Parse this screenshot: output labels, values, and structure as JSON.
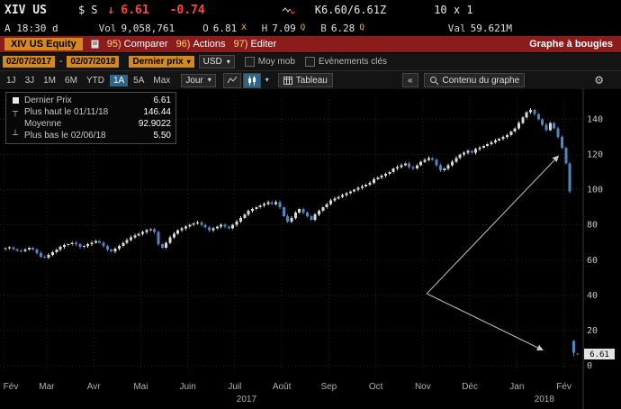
{
  "top_bar": {
    "ticker": "XIV US",
    "currency_flag": "$",
    "session_flag": "S",
    "tick_arrow": "↓",
    "last_price": "6.61",
    "net_change": "-0.74",
    "bid_ask": "K6.60/6.61Z",
    "lot_size": "10 x 1",
    "as_of": "A 18:30 d",
    "volume_label": "Vol",
    "volume": "9,058,761",
    "open_label": "O",
    "open": "6.81",
    "open_exch": "X",
    "high_label": "H",
    "high": "7.09",
    "high_exch": "Q",
    "low_label": "B",
    "low": "6.28",
    "low_exch": "Q",
    "value_label": "Val",
    "value": "59.621M"
  },
  "menu_bar": {
    "security": "XIV US Equity",
    "items": [
      {
        "num": "95)",
        "label": "Comparer"
      },
      {
        "num": "96)",
        "label": "Actions"
      },
      {
        "num": "97)",
        "label": "Editer"
      }
    ],
    "panel_title": "Graphe à bougies"
  },
  "toolbar": {
    "date_from": "02/07/2017",
    "date_sep": "-",
    "date_to": "02/07/2018",
    "price_field": "Dernier prix",
    "currency": "USD",
    "mov_avg_label": "Moy mob",
    "key_events_label": "Evènements clés",
    "periods": [
      "1J",
      "3J",
      "1M",
      "6M",
      "YTD",
      "1A",
      "5A",
      "Max"
    ],
    "active_period": "1A",
    "interval": "Jour",
    "table_label": "Tableau",
    "collapse_label": "«",
    "chart_content_label": "Contenu du graphe"
  },
  "legend": {
    "rows": [
      {
        "label": "Dernier Prix",
        "value": "6.61"
      },
      {
        "label": "Plus haut le 01/11/18",
        "value": "146.44"
      },
      {
        "label": "Moyenne",
        "value": "92.9022"
      },
      {
        "label": "Plus bas le 02/06/18",
        "value": "5.50"
      }
    ]
  },
  "chart_data": {
    "type": "candlestick",
    "symbol": "XIV US Equity",
    "title": "Graphe à bougies",
    "currency": "USD",
    "date_range": "02/07/2017 - 02/07/2018",
    "interval": "Jour",
    "ylim": [
      0,
      150
    ],
    "y_ticks": [
      0,
      20,
      40,
      60,
      80,
      100,
      120,
      140
    ],
    "grid": "dotted",
    "legend_position": "top-left",
    "up_color": "#d9d9d9",
    "down_color": "#4e86c0",
    "last_price": 6.61,
    "last_price_label": "6.61",
    "high_point": {
      "date": "01/11/18",
      "value": 146.44
    },
    "low_point": {
      "date": "02/06/18",
      "value": 5.5
    },
    "mean": 92.9022,
    "x_months": [
      {
        "label": "Fév",
        "i": 0
      },
      {
        "label": "Mar",
        "i": 11
      },
      {
        "label": "Avr",
        "i": 23
      },
      {
        "label": "Mai",
        "i": 35
      },
      {
        "label": "Juin",
        "i": 47
      },
      {
        "label": "Juil",
        "i": 59
      },
      {
        "label": "Août",
        "i": 71
      },
      {
        "label": "Sep",
        "i": 83
      },
      {
        "label": "Oct",
        "i": 95
      },
      {
        "label": "Nov",
        "i": 107
      },
      {
        "label": "Déc",
        "i": 119
      },
      {
        "label": "Jan",
        "i": 131
      },
      {
        "label": "Fév",
        "i": 143
      }
    ],
    "x_years": [
      {
        "label": "2017",
        "i": 62
      },
      {
        "label": "2018",
        "i": 138
      }
    ],
    "annotation_color": "#c8c8c8",
    "annotation_arrows": [
      {
        "from": [
          108,
          41
        ],
        "to": [
          141.5,
          119
        ]
      },
      {
        "from": [
          108,
          41
        ],
        "to": [
          137.5,
          9
        ]
      }
    ],
    "candles": [
      [
        66.2,
        67.4,
        65.3,
        66.8
      ],
      [
        66.8,
        67.9,
        66.0,
        67.2
      ],
      [
        67.2,
        67.9,
        65.6,
        66.4
      ],
      [
        66.4,
        66.9,
        64.6,
        65.4
      ],
      [
        65.4,
        66.3,
        64.4,
        65.3
      ],
      [
        65.3,
        66.9,
        64.4,
        66.0
      ],
      [
        66.0,
        67.9,
        65.1,
        67.0
      ],
      [
        67.0,
        67.9,
        65.1,
        66.0
      ],
      [
        66.0,
        66.9,
        63.1,
        64.0
      ],
      [
        64.0,
        64.9,
        61.1,
        62.0
      ],
      [
        62.0,
        62.9,
        60.6,
        61.5
      ],
      [
        61.5,
        63.9,
        60.6,
        63.0
      ],
      [
        63.0,
        65.4,
        62.1,
        64.5
      ],
      [
        64.5,
        66.9,
        63.6,
        66.0
      ],
      [
        66.0,
        68.4,
        65.1,
        67.5
      ],
      [
        67.5,
        69.4,
        66.6,
        68.5
      ],
      [
        68.5,
        69.9,
        67.6,
        69.0
      ],
      [
        69.0,
        70.9,
        68.1,
        70.0
      ],
      [
        70.0,
        70.9,
        68.1,
        69.0
      ],
      [
        69.0,
        69.9,
        66.6,
        67.5
      ],
      [
        67.5,
        68.9,
        66.6,
        68.0
      ],
      [
        68.0,
        69.9,
        67.1,
        69.0
      ],
      [
        69.0,
        70.9,
        68.1,
        70.0
      ],
      [
        70.0,
        71.9,
        69.1,
        71.0
      ],
      [
        71.0,
        71.9,
        69.1,
        70.0
      ],
      [
        70.0,
        70.9,
        67.1,
        68.0
      ],
      [
        68.0,
        68.9,
        65.1,
        66.0
      ],
      [
        66.0,
        66.9,
        64.1,
        65.0
      ],
      [
        65.0,
        67.4,
        64.1,
        66.5
      ],
      [
        66.5,
        68.9,
        65.6,
        68.0
      ],
      [
        68.0,
        70.9,
        67.1,
        70.0
      ],
      [
        70.0,
        72.4,
        69.1,
        71.5
      ],
      [
        71.5,
        73.9,
        70.6,
        73.0
      ],
      [
        73.0,
        74.9,
        72.1,
        74.0
      ],
      [
        74.0,
        75.9,
        73.1,
        75.0
      ],
      [
        75.0,
        76.9,
        74.1,
        76.0
      ],
      [
        76.0,
        77.9,
        75.1,
        77.0
      ],
      [
        77.0,
        78.4,
        76.1,
        77.5
      ],
      [
        77.5,
        78.4,
        75.1,
        76.0
      ],
      [
        76.0,
        76.9,
        68.1,
        69.0
      ],
      [
        69.0,
        69.9,
        66.1,
        67.0
      ],
      [
        67.0,
        70.9,
        66.1,
        70.0
      ],
      [
        70.0,
        73.9,
        69.1,
        73.0
      ],
      [
        73.0,
        75.9,
        72.1,
        75.0
      ],
      [
        75.0,
        77.9,
        74.1,
        77.0
      ],
      [
        77.0,
        78.9,
        76.1,
        78.0
      ],
      [
        78.0,
        79.9,
        77.1,
        79.0
      ],
      [
        79.0,
        80.9,
        78.1,
        80.0
      ],
      [
        80.0,
        81.9,
        79.1,
        81.0
      ],
      [
        81.0,
        82.4,
        80.1,
        81.5
      ],
      [
        81.5,
        82.4,
        79.1,
        80.0
      ],
      [
        80.0,
        80.9,
        77.6,
        78.5
      ],
      [
        78.5,
        79.4,
        76.1,
        77.0
      ],
      [
        77.0,
        78.9,
        76.1,
        78.0
      ],
      [
        78.0,
        79.9,
        77.1,
        79.0
      ],
      [
        79.0,
        80.9,
        78.1,
        80.0
      ],
      [
        80.0,
        80.9,
        78.1,
        79.0
      ],
      [
        79.0,
        79.9,
        77.1,
        78.0
      ],
      [
        78.0,
        80.9,
        77.1,
        80.0
      ],
      [
        80.0,
        82.9,
        79.1,
        82.0
      ],
      [
        82.0,
        84.9,
        81.1,
        84.0
      ],
      [
        84.0,
        86.9,
        83.1,
        86.0
      ],
      [
        86.0,
        88.9,
        85.1,
        88.0
      ],
      [
        88.0,
        89.9,
        87.1,
        89.0
      ],
      [
        89.0,
        90.9,
        88.1,
        90.0
      ],
      [
        90.0,
        91.9,
        89.1,
        91.0
      ],
      [
        91.0,
        92.9,
        90.1,
        92.0
      ],
      [
        92.0,
        93.9,
        91.1,
        93.0
      ],
      [
        93.0,
        93.9,
        91.1,
        92.0
      ],
      [
        92.0,
        93.9,
        91.1,
        93.0
      ],
      [
        93.0,
        93.9,
        89.1,
        90.0
      ],
      [
        90.0,
        90.9,
        84.1,
        85.0
      ],
      [
        85.0,
        85.9,
        81.1,
        82.0
      ],
      [
        82.0,
        84.9,
        81.1,
        84.0
      ],
      [
        84.0,
        87.9,
        83.1,
        87.0
      ],
      [
        87.0,
        89.9,
        86.1,
        89.0
      ],
      [
        89.0,
        89.9,
        86.1,
        87.0
      ],
      [
        87.0,
        87.9,
        84.1,
        85.0
      ],
      [
        85.0,
        85.9,
        82.1,
        83.0
      ],
      [
        83.0,
        86.9,
        82.1,
        86.0
      ],
      [
        86.0,
        88.9,
        85.1,
        88.0
      ],
      [
        88.0,
        90.9,
        87.1,
        90.0
      ],
      [
        90.0,
        92.9,
        89.1,
        92.0
      ],
      [
        92.0,
        94.9,
        91.1,
        94.0
      ],
      [
        94.0,
        95.9,
        93.1,
        95.0
      ],
      [
        95.0,
        96.9,
        94.1,
        96.0
      ],
      [
        96.0,
        97.9,
        95.1,
        97.0
      ],
      [
        97.0,
        98.9,
        96.1,
        98.0
      ],
      [
        98.0,
        99.9,
        97.1,
        99.0
      ],
      [
        99.0,
        100.9,
        98.1,
        100.0
      ],
      [
        100.0,
        101.9,
        99.1,
        101.0
      ],
      [
        101.0,
        102.9,
        100.1,
        102.0
      ],
      [
        102.0,
        103.9,
        101.1,
        103.0
      ],
      [
        103.0,
        104.9,
        102.1,
        104.0
      ],
      [
        104.0,
        106.9,
        103.1,
        106.0
      ],
      [
        106.0,
        107.9,
        105.1,
        107.0
      ],
      [
        107.0,
        108.9,
        106.1,
        108.0
      ],
      [
        108.0,
        109.9,
        107.1,
        109.0
      ],
      [
        109.0,
        110.9,
        108.1,
        110.0
      ],
      [
        110.0,
        112.9,
        109.1,
        112.0
      ],
      [
        112.0,
        113.9,
        111.1,
        113.0
      ],
      [
        113.0,
        114.9,
        112.1,
        114.0
      ],
      [
        114.0,
        115.9,
        113.1,
        115.0
      ],
      [
        115.0,
        115.9,
        112.1,
        113.0
      ],
      [
        113.0,
        113.9,
        111.1,
        112.0
      ],
      [
        112.0,
        114.9,
        111.1,
        114.0
      ],
      [
        114.0,
        116.9,
        113.1,
        116.0
      ],
      [
        116.0,
        117.9,
        115.1,
        117.0
      ],
      [
        117.0,
        118.9,
        116.1,
        118.0
      ],
      [
        118.0,
        118.9,
        116.1,
        117.0
      ],
      [
        117.0,
        117.9,
        113.1,
        114.0
      ],
      [
        114.0,
        114.9,
        110.1,
        111.0
      ],
      [
        111.0,
        112.9,
        110.1,
        112.0
      ],
      [
        112.0,
        114.9,
        111.1,
        114.0
      ],
      [
        114.0,
        116.9,
        113.1,
        116.0
      ],
      [
        116.0,
        118.9,
        115.1,
        118.0
      ],
      [
        118.0,
        120.9,
        117.1,
        120.0
      ],
      [
        120.0,
        121.9,
        119.1,
        121.0
      ],
      [
        121.0,
        122.9,
        120.1,
        122.0
      ],
      [
        122.0,
        122.9,
        120.1,
        121.0
      ],
      [
        121.0,
        123.9,
        120.1,
        123.0
      ],
      [
        123.0,
        124.9,
        122.1,
        124.0
      ],
      [
        124.0,
        125.9,
        123.1,
        125.0
      ],
      [
        125.0,
        126.9,
        124.1,
        126.0
      ],
      [
        126.0,
        127.9,
        125.1,
        127.0
      ],
      [
        127.0,
        128.9,
        126.1,
        128.0
      ],
      [
        128.0,
        129.9,
        127.1,
        129.0
      ],
      [
        129.0,
        130.9,
        128.1,
        130.0
      ],
      [
        130.0,
        131.9,
        129.1,
        131.0
      ],
      [
        131.0,
        133.9,
        130.1,
        133.0
      ],
      [
        133.0,
        135.9,
        132.1,
        135.0
      ],
      [
        135.0,
        138.9,
        134.1,
        138.0
      ],
      [
        138.0,
        141.9,
        137.1,
        141.0
      ],
      [
        141.0,
        144.9,
        140.1,
        144.0
      ],
      [
        144.0,
        146.44,
        143.1,
        145.5
      ],
      [
        145.5,
        146.0,
        142.1,
        143.0
      ],
      [
        143.0,
        143.9,
        139.1,
        140.0
      ],
      [
        140.0,
        140.9,
        136.1,
        137.0
      ],
      [
        137.0,
        137.9,
        133.1,
        134.0
      ],
      [
        134.0,
        138.9,
        133.1,
        138.0
      ],
      [
        138.0,
        138.9,
        134.1,
        135.0
      ],
      [
        135.0,
        135.9,
        129.1,
        130.0
      ],
      [
        130.0,
        130.9,
        123.1,
        124.0
      ],
      [
        124.0,
        124.9,
        114.1,
        115.0
      ],
      [
        115.0,
        115.9,
        98.1,
        99.0
      ],
      [
        14.0,
        14.5,
        5.5,
        7.4
      ],
      [
        7.0,
        7.3,
        6.0,
        6.61
      ]
    ]
  }
}
